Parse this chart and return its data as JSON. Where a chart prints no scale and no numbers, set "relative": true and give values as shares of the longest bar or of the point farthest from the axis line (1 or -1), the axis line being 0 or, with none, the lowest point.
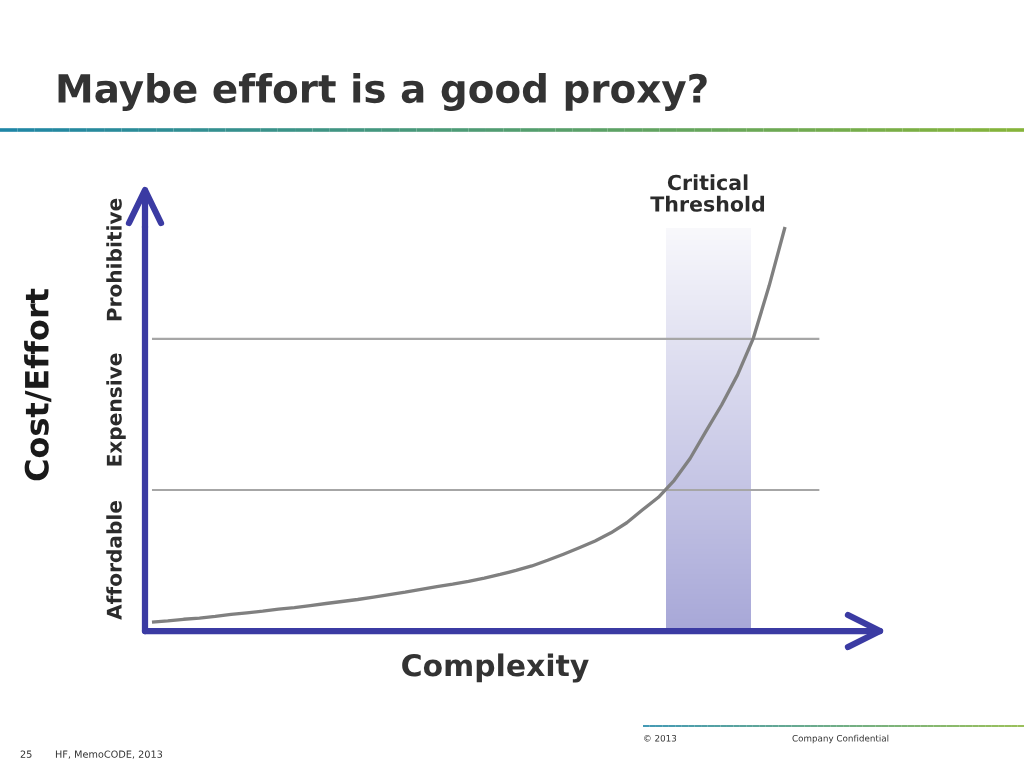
{
  "chart_data": {
    "type": "line",
    "title": "Maybe effort is a good proxy?",
    "xlabel": "Complexity",
    "ylabel": "Cost/Effort",
    "categories": [
      null,
      null,
      null,
      null,
      null,
      null,
      null,
      null,
      null,
      null,
      null,
      null,
      null,
      null,
      null,
      null,
      null,
      null,
      null,
      null,
      null,
      null,
      null,
      null,
      null,
      null,
      null,
      null,
      null,
      null,
      null,
      null,
      null,
      null,
      null,
      null,
      null,
      null,
      null,
      null,
      null
    ],
    "series": [
      {
        "color": "#808080",
        "values": [
          0.022,
          0.025,
          0.029,
          0.032,
          0.036,
          0.041,
          0.045,
          0.049,
          0.054,
          0.058,
          0.063,
          0.068,
          0.073,
          0.078,
          0.084,
          0.09,
          0.096,
          0.103,
          0.11,
          0.116,
          0.123,
          0.131,
          0.14,
          0.15,
          0.161,
          0.175,
          0.19,
          0.206,
          0.223,
          0.243,
          0.268,
          0.3,
          0.331,
          0.373,
          0.427,
          0.494,
          0.56,
          0.634,
          0.725,
          0.855,
          1.0
        ]
      }
    ],
    "relative": true,
    "line_style": "solid",
    "ref_lines": [
      {
        "axis": "y",
        "value": 0.349,
        "color": "#a6a6a6"
      },
      {
        "axis": "y",
        "value": 0.723,
        "color": "#a6a6a6"
      }
    ],
    "annotations": [
      "Affordable",
      "Expensive",
      "Prohibitive",
      "Critical Threshold",
      "25",
      "HF, MemoCODE, 2013",
      "© 2013",
      "Company Confidential"
    ]
  }
}
